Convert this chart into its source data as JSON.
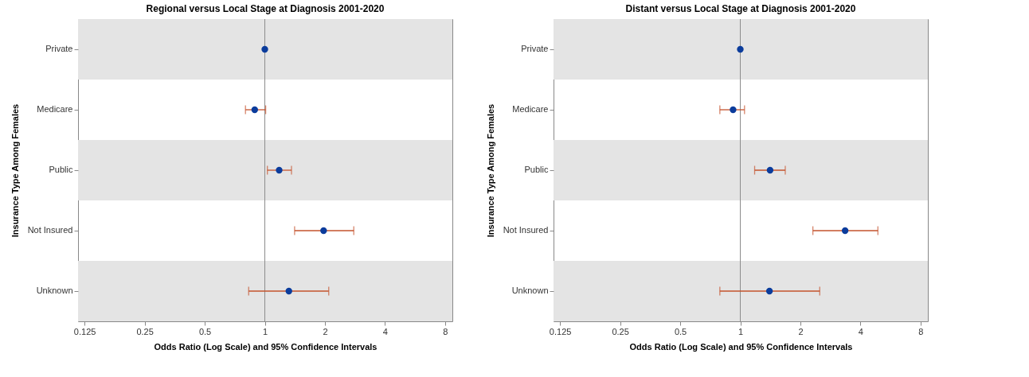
{
  "chart_data": [
    {
      "type": "scatter",
      "orientation": "horizontal",
      "title": "Regional versus Local Stage at Diagnosis 2001-2020",
      "xlabel": "Odds Ratio (Log Scale) and 95% Confidence Intervals",
      "ylabel": "Insurance Type Among Females",
      "categories": [
        "Private",
        "Medicare",
        "Public",
        "Not Insured",
        "Unknown"
      ],
      "series": [
        {
          "color": "#0b3c9c",
          "values": [
            1,
            0.89,
            1.18,
            1.97,
            1.32
          ],
          "errors": [
            null,
            [
              0.8,
              1.01
            ],
            [
              1.03,
              1.36
            ],
            [
              1.41,
              2.79
            ],
            [
              0.83,
              2.09
            ]
          ]
        }
      ],
      "log": "x",
      "xlim": [
        0.116,
        8.7
      ],
      "xticks": [
        0.125,
        0.25,
        0.5,
        1,
        2,
        4,
        8
      ],
      "marker": "circle",
      "grid": false,
      "ref_lines": [
        {
          "axis": "x",
          "value": 1,
          "color": "#8c8c8c"
        }
      ],
      "bands": [
        {
          "axis": "y",
          "from": "Private",
          "to": "Private",
          "color": "#e4e4e4"
        },
        {
          "axis": "y",
          "from": "Public",
          "to": "Public",
          "color": "#e4e4e4"
        },
        {
          "axis": "y",
          "from": "Unknown",
          "to": "Unknown",
          "color": "#e4e4e4"
        }
      ]
    },
    {
      "type": "scatter",
      "orientation": "horizontal",
      "title": "Distant versus Local Stage at Diagnosis 2001-2020",
      "xlabel": "Odds Ratio (Log Scale) and 95% Confidence Intervals",
      "ylabel": "Insurance Type Among Females",
      "categories": [
        "Private",
        "Medicare",
        "Public",
        "Not Insured",
        "Unknown"
      ],
      "series": [
        {
          "color": "#0b3c9c",
          "values": [
            1,
            0.92,
            1.41,
            3.35,
            1.4
          ],
          "errors": [
            null,
            [
              0.79,
              1.05
            ],
            [
              1.18,
              1.68
            ],
            [
              2.31,
              4.89
            ],
            [
              0.79,
              2.5
            ]
          ]
        }
      ],
      "log": "x",
      "xlim": [
        0.116,
        8.7
      ],
      "xticks": [
        0.125,
        0.25,
        0.5,
        1,
        2,
        4,
        8
      ],
      "marker": "circle",
      "grid": false,
      "ref_lines": [
        {
          "axis": "x",
          "value": 1,
          "color": "#8c8c8c"
        }
      ],
      "bands": [
        {
          "axis": "y",
          "from": "Private",
          "to": "Private",
          "color": "#e4e4e4"
        },
        {
          "axis": "y",
          "from": "Public",
          "to": "Public",
          "color": "#e4e4e4"
        },
        {
          "axis": "y",
          "from": "Unknown",
          "to": "Unknown",
          "color": "#e4e4e4"
        }
      ]
    }
  ]
}
